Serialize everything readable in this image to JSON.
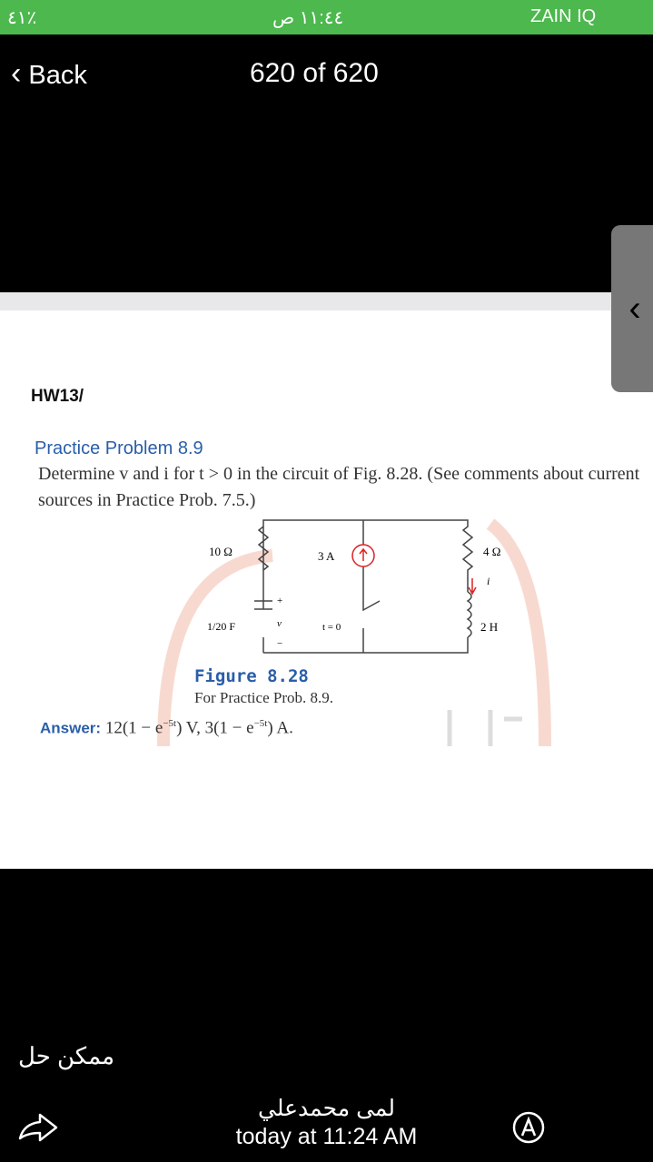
{
  "status_bar": {
    "battery": "٤١٪",
    "time": "١١:٤٤ ص",
    "carrier": "ZAIN IQ"
  },
  "header": {
    "back": "Back",
    "title": "620 of 620"
  },
  "image": {
    "heading": "HW13/",
    "problem_title": "Practice Problem 8.9",
    "problem_text": "Determine v and i for t > 0 in the circuit of Fig. 8.28. (See comments about current sources in Practice Prob. 7.5.)",
    "circuit": {
      "r1": "10 Ω",
      "source": "3 A",
      "r2": "4 Ω",
      "current": "i",
      "capacitor": "1/20 F",
      "voltage": "v",
      "plus": "+",
      "minus": "−",
      "switch": "t = 0",
      "inductor": "2 H"
    },
    "figure_label": "Figure 8.28",
    "figure_caption": "For Practice Prob. 8.9.",
    "answer": {
      "label": "Answer:",
      "part1": "12(1 − e",
      "exp1": "−5t",
      "part2": ") V, 3(1 − e",
      "exp2": "−5t",
      "part3": ") A."
    }
  },
  "message": {
    "caption": "ممكن حل",
    "sender": "لمى محمدعلي",
    "timestamp": "today at 11:24 AM"
  }
}
